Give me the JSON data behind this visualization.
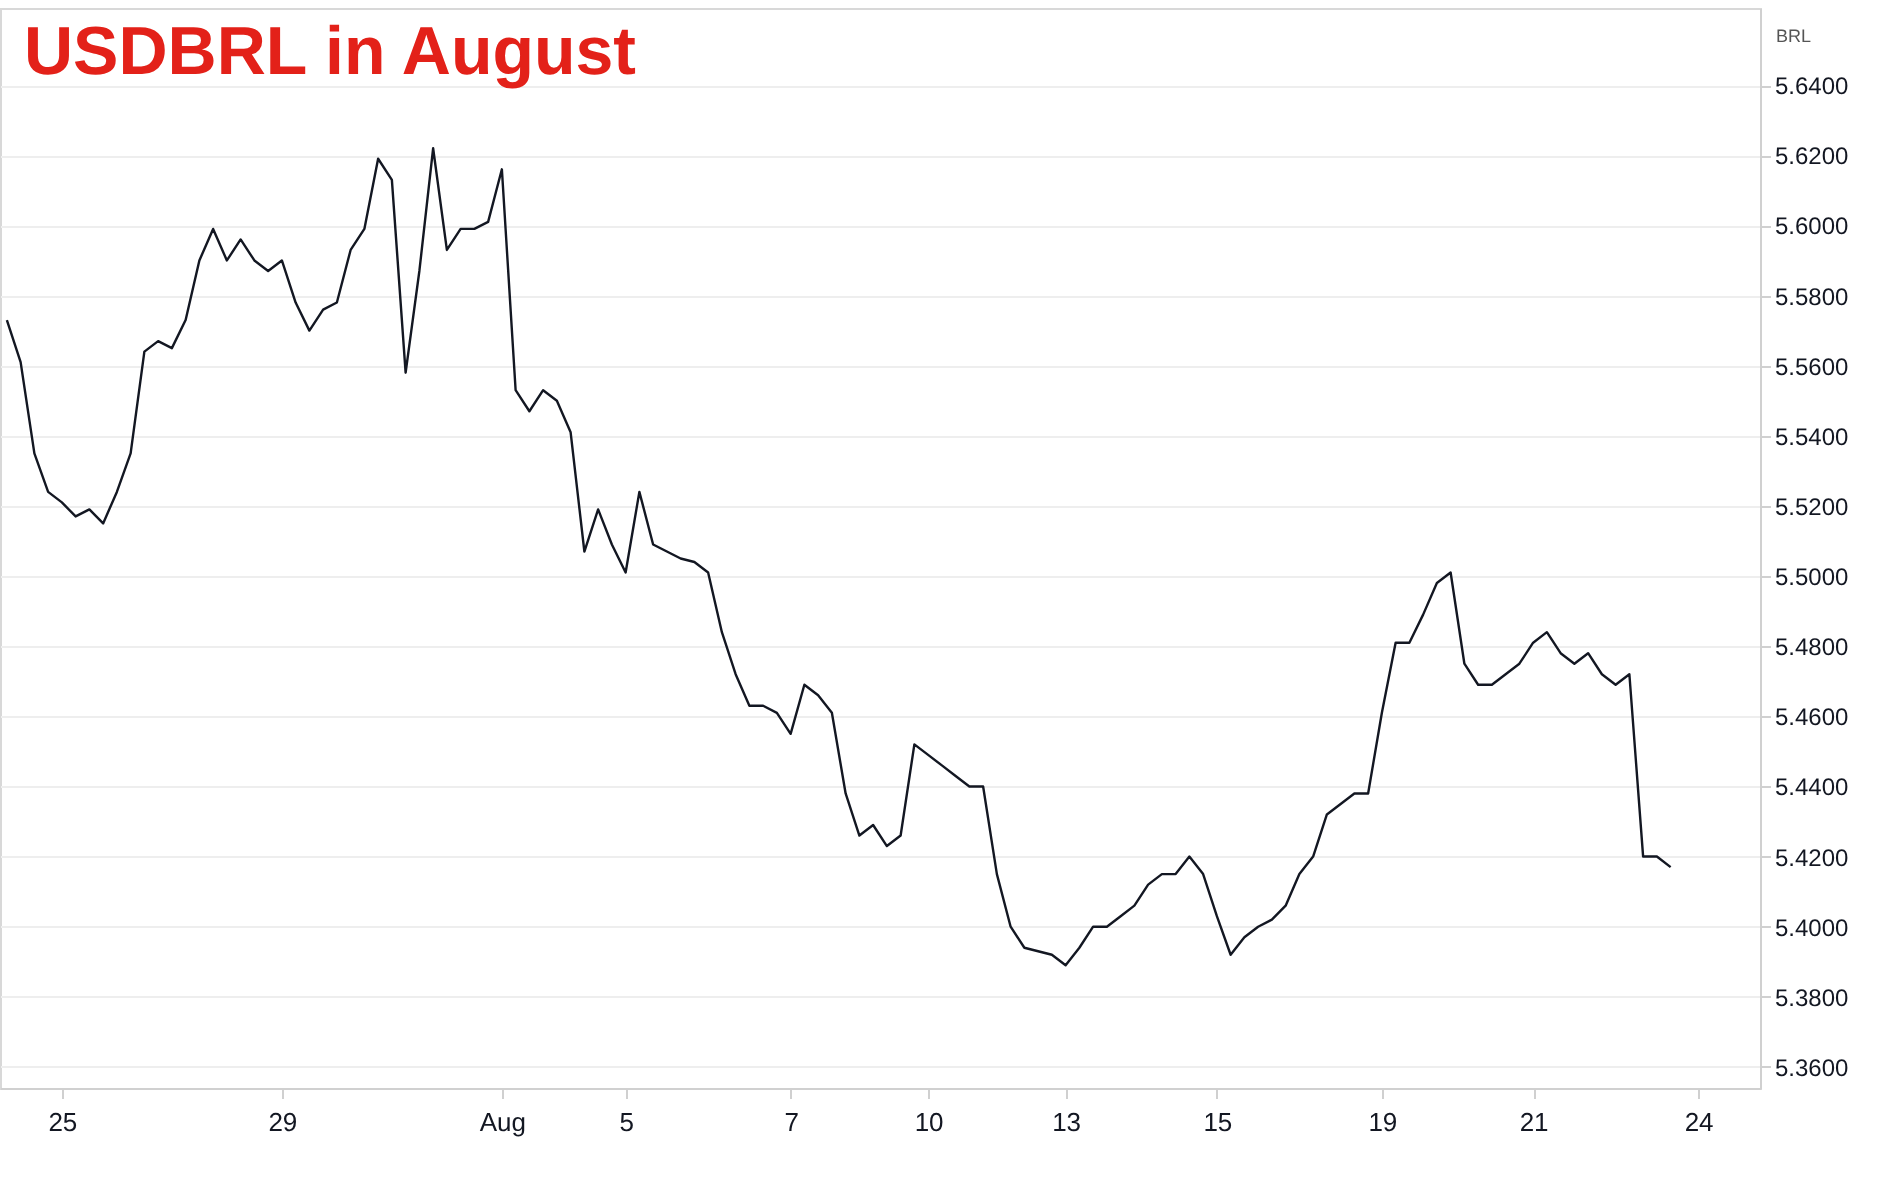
{
  "chart_data": {
    "type": "line",
    "title": "USDBRL in August",
    "ylabel": "BRL",
    "categories": [
      null,
      null,
      null,
      null,
      "25",
      null,
      null,
      null,
      null,
      null,
      null,
      null,
      null,
      null,
      null,
      null,
      null,
      null,
      null,
      null,
      "29",
      null,
      null,
      null,
      null,
      null,
      null,
      null,
      null,
      null,
      null,
      null,
      null,
      null,
      null,
      null,
      "Aug",
      null,
      null,
      null,
      null,
      null,
      null,
      null,
      null,
      "5",
      null,
      null,
      null,
      null,
      null,
      null,
      null,
      null,
      null,
      null,
      null,
      "7",
      null,
      null,
      null,
      null,
      null,
      null,
      null,
      null,
      null,
      "10",
      null,
      null,
      null,
      null,
      null,
      null,
      null,
      null,
      null,
      "13",
      null,
      null,
      null,
      null,
      null,
      null,
      null,
      null,
      null,
      null,
      "15",
      null,
      null,
      null,
      null,
      null,
      null,
      null,
      null,
      null,
      null,
      null,
      "19",
      null,
      null,
      null,
      null,
      null,
      null,
      null,
      null,
      null,
      null,
      "21",
      null,
      null,
      null,
      null,
      null,
      null,
      null,
      null,
      null,
      null,
      null,
      "24",
      null,
      null,
      null,
      null
    ],
    "series": [
      {
        "color": "#131722",
        "values": [
          5.573,
          5.561,
          5.535,
          5.524,
          5.521,
          5.517,
          5.519,
          5.515,
          5.524,
          5.535,
          5.564,
          5.567,
          5.565,
          5.573,
          5.59,
          5.599,
          5.59,
          5.596,
          5.59,
          5.587,
          5.59,
          5.578,
          5.57,
          5.576,
          5.578,
          5.593,
          5.599,
          5.619,
          5.613,
          5.558,
          5.587,
          5.622,
          5.593,
          5.599,
          5.599,
          5.601,
          5.616,
          5.553,
          5.547,
          5.553,
          5.55,
          5.541,
          5.507,
          5.519,
          5.509,
          5.501,
          5.524,
          5.509,
          5.507,
          5.505,
          5.504,
          5.501,
          5.484,
          5.472,
          5.463,
          5.463,
          5.461,
          5.455,
          5.469,
          5.466,
          5.461,
          5.438,
          5.426,
          5.429,
          5.423,
          5.426,
          5.452,
          5.449,
          5.446,
          5.443,
          5.44,
          5.44,
          5.415,
          5.4,
          5.394,
          5.393,
          5.392,
          5.389,
          5.394,
          5.4,
          5.4,
          5.403,
          5.406,
          5.412,
          5.415,
          5.415,
          5.42,
          5.415,
          5.403,
          5.392,
          5.397,
          5.4,
          5.402,
          5.406,
          5.415,
          5.42,
          5.432,
          5.435,
          5.438,
          5.438,
          5.461,
          5.481,
          5.481,
          5.489,
          5.498,
          5.501,
          5.475,
          5.469,
          5.469,
          5.472,
          5.475,
          5.481,
          5.484,
          5.478,
          5.475,
          5.478,
          5.472,
          5.469,
          5.472,
          5.42,
          5.42,
          5.417,
          null,
          null,
          null,
          null,
          null,
          null
        ]
      }
    ],
    "ylim": [
      5.354,
      5.662
    ],
    "yticks": [
      {
        "value": 5.36,
        "label": "5.3600"
      },
      {
        "value": 5.38,
        "label": "5.3800"
      },
      {
        "value": 5.4,
        "label": "5.4000"
      },
      {
        "value": 5.42,
        "label": "5.4200"
      },
      {
        "value": 5.44,
        "label": "5.4400"
      },
      {
        "value": 5.46,
        "label": "5.4600"
      },
      {
        "value": 5.48,
        "label": "5.4800"
      },
      {
        "value": 5.5,
        "label": "5.5000"
      },
      {
        "value": 5.52,
        "label": "5.5200"
      },
      {
        "value": 5.54,
        "label": "5.5400"
      },
      {
        "value": 5.56,
        "label": "5.5600"
      },
      {
        "value": 5.58,
        "label": "5.5800"
      },
      {
        "value": 5.6,
        "label": "5.6000"
      },
      {
        "value": 5.62,
        "label": "5.6200"
      },
      {
        "value": 5.64,
        "label": "5.6400"
      }
    ],
    "grid": "y"
  }
}
